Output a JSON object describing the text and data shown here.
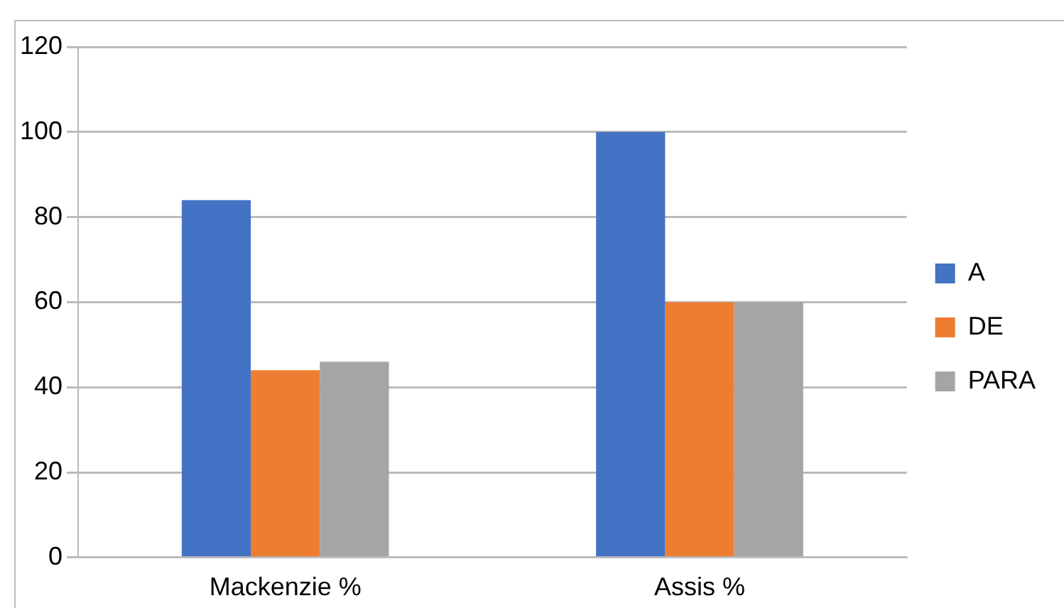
{
  "chart_data": {
    "type": "bar",
    "categories": [
      "Mackenzie %",
      "Assis %"
    ],
    "series": [
      {
        "name": "A",
        "color": "#4472c4",
        "values": [
          84,
          100
        ]
      },
      {
        "name": "DE",
        "color": "#ed7d31",
        "values": [
          44,
          60
        ]
      },
      {
        "name": "PARA",
        "color": "#a5a5a5",
        "values": [
          46,
          60
        ]
      }
    ],
    "ylim": [
      0,
      120
    ],
    "yticks": [
      0,
      20,
      40,
      60,
      80,
      100,
      120
    ],
    "grid": "y",
    "legend": "right"
  }
}
